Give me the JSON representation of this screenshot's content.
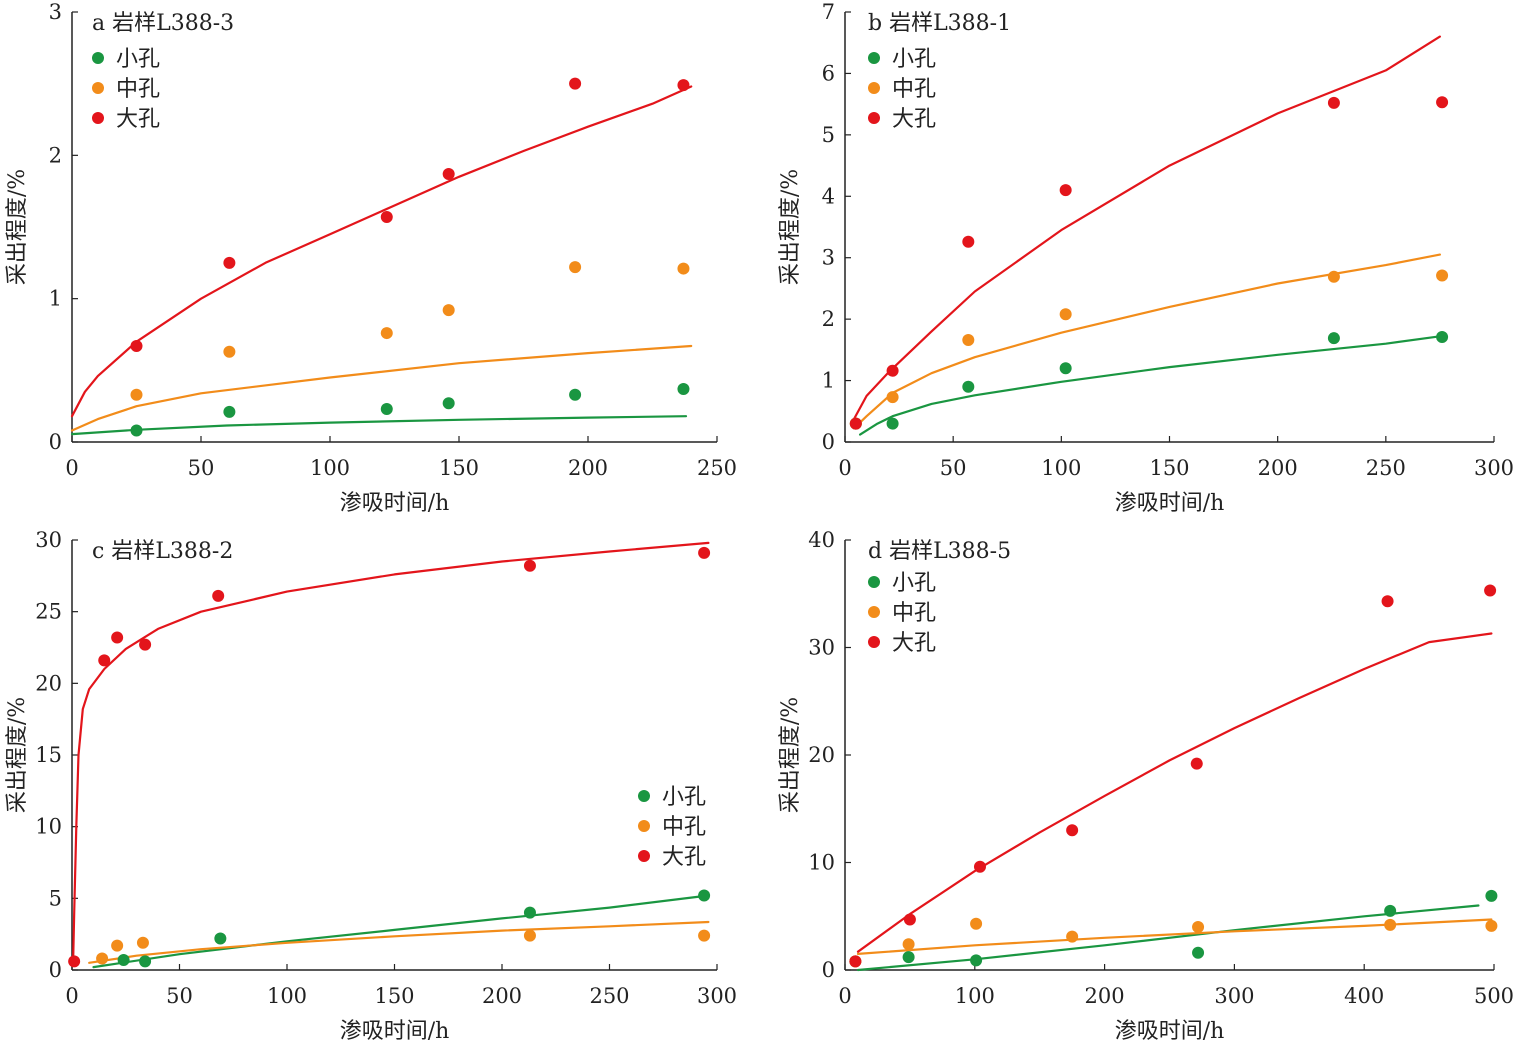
{
  "chart_data": [
    {
      "type": "scatter",
      "title": "a 岩样L388-3",
      "xlabel": "渗吸时间/h",
      "ylabel": "采出程度/%",
      "xlim": [
        0,
        250
      ],
      "ylim": [
        0,
        3
      ],
      "xticks": [
        0,
        50,
        100,
        150,
        200,
        250
      ],
      "yticks": [
        0,
        1,
        2,
        3
      ],
      "legend_position": "top-left",
      "series": [
        {
          "name": "小孔",
          "color": "#1a9641",
          "points": [
            [
              25,
              0.08
            ],
            [
              61,
              0.21
            ],
            [
              122,
              0.23
            ],
            [
              146,
              0.27
            ],
            [
              195,
              0.33
            ],
            [
              237,
              0.37
            ]
          ],
          "fit": [
            [
              0,
              0.055
            ],
            [
              25,
              0.085
            ],
            [
              60,
              0.115
            ],
            [
              100,
              0.135
            ],
            [
              150,
              0.155
            ],
            [
              200,
              0.17
            ],
            [
              238,
              0.18
            ]
          ]
        },
        {
          "name": "中孔",
          "color": "#f28c1a",
          "points": [
            [
              25,
              0.33
            ],
            [
              61,
              0.63
            ],
            [
              122,
              0.76
            ],
            [
              146,
              0.92
            ],
            [
              195,
              1.22
            ],
            [
              237,
              1.21
            ]
          ],
          "fit": [
            [
              0,
              0.08
            ],
            [
              10,
              0.16
            ],
            [
              25,
              0.25
            ],
            [
              50,
              0.34
            ],
            [
              100,
              0.45
            ],
            [
              150,
              0.55
            ],
            [
              200,
              0.62
            ],
            [
              240,
              0.67
            ]
          ]
        },
        {
          "name": "大孔",
          "color": "#e3151b",
          "points": [
            [
              25,
              0.67
            ],
            [
              61,
              1.25
            ],
            [
              122,
              1.57
            ],
            [
              146,
              1.87
            ],
            [
              195,
              2.5
            ],
            [
              237,
              2.49
            ]
          ],
          "fit": [
            [
              0,
              0.18
            ],
            [
              5,
              0.35
            ],
            [
              10,
              0.46
            ],
            [
              25,
              0.7
            ],
            [
              50,
              1.0
            ],
            [
              75,
              1.25
            ],
            [
              100,
              1.45
            ],
            [
              125,
              1.65
            ],
            [
              150,
              1.85
            ],
            [
              175,
              2.03
            ],
            [
              200,
              2.2
            ],
            [
              225,
              2.36
            ],
            [
              240,
              2.48
            ]
          ]
        }
      ]
    },
    {
      "type": "scatter",
      "title": "b 岩样L388-1",
      "xlabel": "渗吸时间/h",
      "ylabel": "采出程度/%",
      "xlim": [
        0,
        300
      ],
      "ylim": [
        0,
        7
      ],
      "xticks": [
        0,
        50,
        100,
        150,
        200,
        250,
        300
      ],
      "yticks": [
        0,
        1,
        2,
        3,
        4,
        5,
        6,
        7
      ],
      "legend_position": "top-left",
      "series": [
        {
          "name": "小孔",
          "color": "#1a9641",
          "points": [
            [
              5,
              0.3
            ],
            [
              22,
              0.3
            ],
            [
              57,
              0.9
            ],
            [
              102,
              1.2
            ],
            [
              226,
              1.69
            ],
            [
              276,
              1.71
            ]
          ],
          "fit": [
            [
              7,
              0.12
            ],
            [
              15,
              0.3
            ],
            [
              22,
              0.42
            ],
            [
              40,
              0.62
            ],
            [
              60,
              0.76
            ],
            [
              100,
              0.98
            ],
            [
              150,
              1.22
            ],
            [
              200,
              1.42
            ],
            [
              250,
              1.6
            ],
            [
              275,
              1.72
            ]
          ]
        },
        {
          "name": "中孔",
          "color": "#f28c1a",
          "points": [
            [
              5,
              0.3
            ],
            [
              22,
              0.73
            ],
            [
              57,
              1.66
            ],
            [
              102,
              2.08
            ],
            [
              226,
              2.69
            ],
            [
              276,
              2.71
            ]
          ],
          "fit": [
            [
              5,
              0.25
            ],
            [
              10,
              0.42
            ],
            [
              22,
              0.8
            ],
            [
              40,
              1.12
            ],
            [
              60,
              1.38
            ],
            [
              100,
              1.78
            ],
            [
              150,
              2.2
            ],
            [
              200,
              2.58
            ],
            [
              250,
              2.88
            ],
            [
              275,
              3.05
            ]
          ]
        },
        {
          "name": "大孔",
          "color": "#e3151b",
          "points": [
            [
              5,
              0.3
            ],
            [
              22,
              1.16
            ],
            [
              57,
              3.26
            ],
            [
              102,
              4.1
            ],
            [
              226,
              5.52
            ],
            [
              276,
              5.53
            ]
          ],
          "fit": [
            [
              3,
              0.3
            ],
            [
              10,
              0.75
            ],
            [
              20,
              1.13
            ],
            [
              40,
              1.8
            ],
            [
              60,
              2.45
            ],
            [
              100,
              3.45
            ],
            [
              150,
              4.5
            ],
            [
              200,
              5.35
            ],
            [
              250,
              6.05
            ],
            [
              275,
              6.6
            ]
          ]
        }
      ]
    },
    {
      "type": "scatter",
      "title": "c 岩样L388-2",
      "xlabel": "渗吸时间/h",
      "ylabel": "采出程度/%",
      "xlim": [
        0,
        300
      ],
      "ylim": [
        0,
        30
      ],
      "xticks": [
        0,
        50,
        100,
        150,
        200,
        250,
        300
      ],
      "yticks": [
        0,
        5,
        10,
        15,
        20,
        25,
        30
      ],
      "legend_position": "center-right",
      "series": [
        {
          "name": "小孔",
          "color": "#1a9641",
          "points": [
            [
              24,
              0.7
            ],
            [
              34,
              0.6
            ],
            [
              69,
              2.2
            ],
            [
              213,
              4.0
            ],
            [
              294,
              5.2
            ]
          ],
          "fit": [
            [
              10,
              0.2
            ],
            [
              50,
              1.1
            ],
            [
              100,
              2.0
            ],
            [
              150,
              2.8
            ],
            [
              200,
              3.6
            ],
            [
              250,
              4.35
            ],
            [
              296,
              5.2
            ]
          ]
        },
        {
          "name": "中孔",
          "color": "#f28c1a",
          "points": [
            [
              14,
              0.8
            ],
            [
              21,
              1.7
            ],
            [
              33,
              1.9
            ],
            [
              213,
              2.4
            ],
            [
              294,
              2.4
            ]
          ],
          "fit": [
            [
              8,
              0.5
            ],
            [
              30,
              1.0
            ],
            [
              60,
              1.45
            ],
            [
              100,
              1.9
            ],
            [
              150,
              2.35
            ],
            [
              200,
              2.75
            ],
            [
              250,
              3.05
            ],
            [
              296,
              3.35
            ]
          ]
        },
        {
          "name": "大孔",
          "color": "#e3151b",
          "points": [
            [
              1,
              0.6
            ],
            [
              15,
              21.6
            ],
            [
              21,
              23.2
            ],
            [
              34,
              22.7
            ],
            [
              68,
              26.1
            ],
            [
              213,
              28.2
            ],
            [
              294,
              29.1
            ]
          ],
          "fit": [
            [
              0.5,
              0.5
            ],
            [
              1,
              4.0
            ],
            [
              2,
              10.0
            ],
            [
              3,
              15.0
            ],
            [
              5,
              18.2
            ],
            [
              8,
              19.6
            ],
            [
              15,
              21.0
            ],
            [
              25,
              22.4
            ],
            [
              40,
              23.8
            ],
            [
              60,
              25.0
            ],
            [
              100,
              26.4
            ],
            [
              150,
              27.6
            ],
            [
              200,
              28.5
            ],
            [
              250,
              29.2
            ],
            [
              296,
              29.8
            ]
          ]
        }
      ]
    },
    {
      "type": "scatter",
      "title": "d 岩样L388-5",
      "xlabel": "渗吸时间/h",
      "ylabel": "采出程度/%",
      "xlim": [
        0,
        500
      ],
      "ylim": [
        0,
        40
      ],
      "xticks": [
        0,
        100,
        200,
        300,
        400,
        500
      ],
      "yticks": [
        0,
        10,
        20,
        30,
        40
      ],
      "legend_position": "top-left",
      "series": [
        {
          "name": "小孔",
          "color": "#1a9641",
          "points": [
            [
              8,
              0.8
            ],
            [
              49,
              1.2
            ],
            [
              101,
              0.9
            ],
            [
              272,
              1.6
            ],
            [
              420,
              5.5
            ],
            [
              498,
              6.9
            ]
          ],
          "fit": [
            [
              10,
              0.0
            ],
            [
              100,
              1.0
            ],
            [
              200,
              2.3
            ],
            [
              300,
              3.7
            ],
            [
              400,
              5.0
            ],
            [
              488,
              6.0
            ]
          ]
        },
        {
          "name": "中孔",
          "color": "#f28c1a",
          "points": [
            [
              8,
              0.8
            ],
            [
              49,
              2.4
            ],
            [
              101,
              4.3
            ],
            [
              175,
              3.1
            ],
            [
              272,
              4.0
            ],
            [
              420,
              4.2
            ],
            [
              498,
              4.1
            ]
          ],
          "fit": [
            [
              10,
              1.5
            ],
            [
              100,
              2.3
            ],
            [
              200,
              3.0
            ],
            [
              300,
              3.6
            ],
            [
              400,
              4.1
            ],
            [
              498,
              4.7
            ]
          ]
        },
        {
          "name": "大孔",
          "color": "#e3151b",
          "points": [
            [
              8,
              0.8
            ],
            [
              50,
              4.7
            ],
            [
              104,
              9.6
            ],
            [
              175,
              13.0
            ],
            [
              271,
              19.2
            ],
            [
              418,
              34.3
            ],
            [
              497,
              35.3
            ]
          ],
          "fit": [
            [
              10,
              1.7
            ],
            [
              50,
              5.2
            ],
            [
              100,
              9.2
            ],
            [
              150,
              12.8
            ],
            [
              200,
              16.2
            ],
            [
              250,
              19.5
            ],
            [
              300,
              22.5
            ],
            [
              350,
              25.3
            ],
            [
              400,
              28.0
            ],
            [
              450,
              30.5
            ],
            [
              498,
              31.3
            ]
          ]
        }
      ]
    }
  ]
}
